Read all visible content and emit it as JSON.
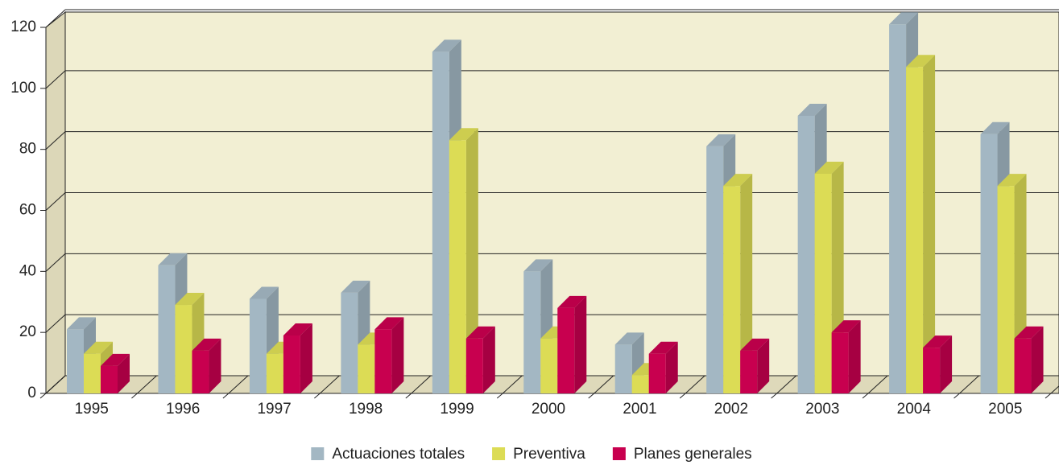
{
  "chart_data": {
    "type": "bar3d",
    "categories": [
      "1995",
      "1996",
      "1997",
      "1998",
      "1999",
      "2000",
      "2001",
      "2002",
      "2003",
      "2004",
      "2005"
    ],
    "series": [
      {
        "name": "Actuaciones totales",
        "color": "#a3b7c3",
        "values": [
          21,
          42,
          31,
          33,
          112,
          40,
          16,
          81,
          91,
          121,
          85
        ]
      },
      {
        "name": "Preventiva",
        "color": "#dcdc55",
        "values": [
          13,
          29,
          13,
          16,
          83,
          18,
          6,
          68,
          72,
          107,
          68
        ]
      },
      {
        "name": "Planes generales",
        "color": "#c8004f",
        "values": [
          9,
          14,
          19,
          21,
          18,
          28,
          13,
          14,
          20,
          15,
          18
        ]
      }
    ],
    "ylim": [
      0,
      120
    ],
    "yticks": [
      0,
      20,
      40,
      60,
      80,
      100,
      120
    ],
    "grid": true,
    "legend": "bottom"
  }
}
